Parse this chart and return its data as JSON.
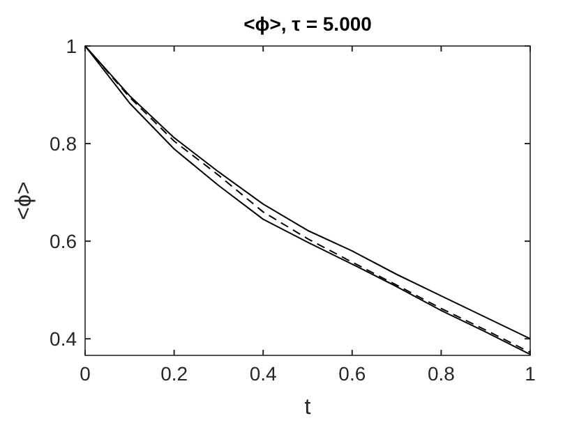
{
  "chart_data": {
    "type": "line",
    "title": "<ϕ>, τ = 5.000",
    "xlabel": "t",
    "ylabel": "<ϕ>",
    "x": [
      0,
      0.1,
      0.2,
      0.3,
      0.4,
      0.5,
      0.6,
      0.7,
      0.8,
      0.9,
      1
    ],
    "series": [
      {
        "color": "#000000",
        "line_style": "solid",
        "values": [
          1,
          0.898,
          0.812,
          0.742,
          0.676,
          0.622,
          0.58,
          0.532,
          0.488,
          0.444,
          0.4
        ]
      },
      {
        "color": "#000000",
        "line_style": "dashed",
        "values": [
          1,
          0.895,
          0.805,
          0.735,
          0.66,
          0.605,
          0.557,
          0.51,
          0.462,
          0.418,
          0.372
        ]
      },
      {
        "color": "#000000",
        "line_style": "solid",
        "values": [
          1,
          0.883,
          0.789,
          0.714,
          0.645,
          0.598,
          0.553,
          0.507,
          0.458,
          0.414,
          0.368
        ]
      }
    ],
    "xlim": [
      0,
      1
    ],
    "xticks": [
      0,
      0.2,
      0.4,
      0.6,
      0.8,
      1
    ],
    "ylim": [
      0.366,
      1
    ],
    "yticks": [
      0.4,
      0.6,
      0.8,
      1
    ],
    "grid": false,
    "marker": "none"
  }
}
